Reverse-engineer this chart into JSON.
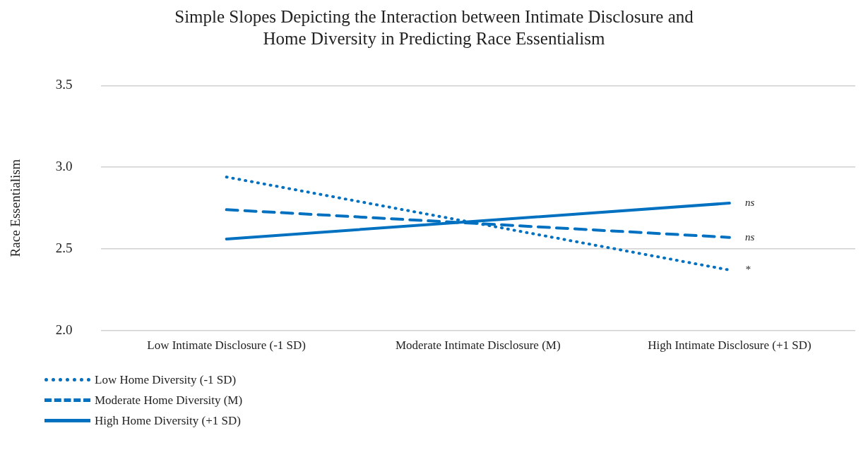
{
  "chart_data": {
    "type": "line",
    "title": "Simple Slopes Depicting the Interaction between Intimate Disclosure and Home Diversity in Predicting Race Essentialism",
    "ylabel": "Race Essentialism",
    "categories": [
      "Low Intimate Disclosure (-1 SD)",
      "Moderate Intimate Disclosure (M)",
      "High Intimate Disclosure (+1 SD)"
    ],
    "series": [
      {
        "name": "Low Home Diversity (-1 SD)",
        "color": "#0070c0",
        "values": [
          2.94,
          2.655,
          2.37
        ],
        "line_style": "dotted"
      },
      {
        "name": "Moderate Home Diversity (M)",
        "color": "#0070c0",
        "values": [
          2.74,
          2.655,
          2.57
        ],
        "line_style": "dashed"
      },
      {
        "name": "High Home Diversity (+1 SD)",
        "color": "#0070c0",
        "values": [
          2.56,
          2.67,
          2.78
        ],
        "line_style": "solid"
      }
    ],
    "ylim": [
      2,
      3.5
    ],
    "yticks": [
      {
        "value": 2,
        "label": "2.0"
      },
      {
        "value": 2.5,
        "label": "2.5"
      },
      {
        "value": 3,
        "label": "3.0"
      },
      {
        "value": 3.5,
        "label": "3.5"
      }
    ],
    "grid": "y",
    "legend": "bottom left",
    "marker": "none",
    "annotations": [
      {
        "text": "ns",
        "x": "High Intimate Disclosure (+1 SD)",
        "y": 2.78
      },
      {
        "text": "ns",
        "x": "High Intimate Disclosure (+1 SD)",
        "y": 2.57
      },
      {
        "text": "*",
        "x": "High Intimate Disclosure (+1 SD)",
        "y": 2.37
      }
    ]
  }
}
